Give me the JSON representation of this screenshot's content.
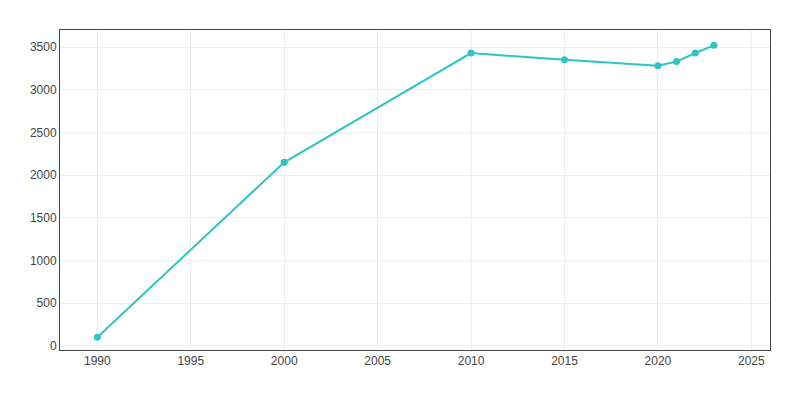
{
  "chart_data": {
    "type": "line",
    "x": [
      1990,
      2000,
      2010,
      2015,
      2020,
      2021,
      2022,
      2023
    ],
    "values": [
      100,
      2150,
      3430,
      3350,
      3280,
      3330,
      3430,
      3520
    ],
    "color": "#2ec4c4",
    "marker": "circle",
    "line_style": "solid",
    "xlim": [
      1988,
      2026
    ],
    "ylim": [
      -50,
      3700
    ],
    "xticks": [
      1990,
      1995,
      2000,
      2005,
      2010,
      2015,
      2020,
      2025
    ],
    "yticks": [
      0,
      500,
      1000,
      1500,
      2000,
      2500,
      3000,
      3500
    ],
    "grid": true
  }
}
